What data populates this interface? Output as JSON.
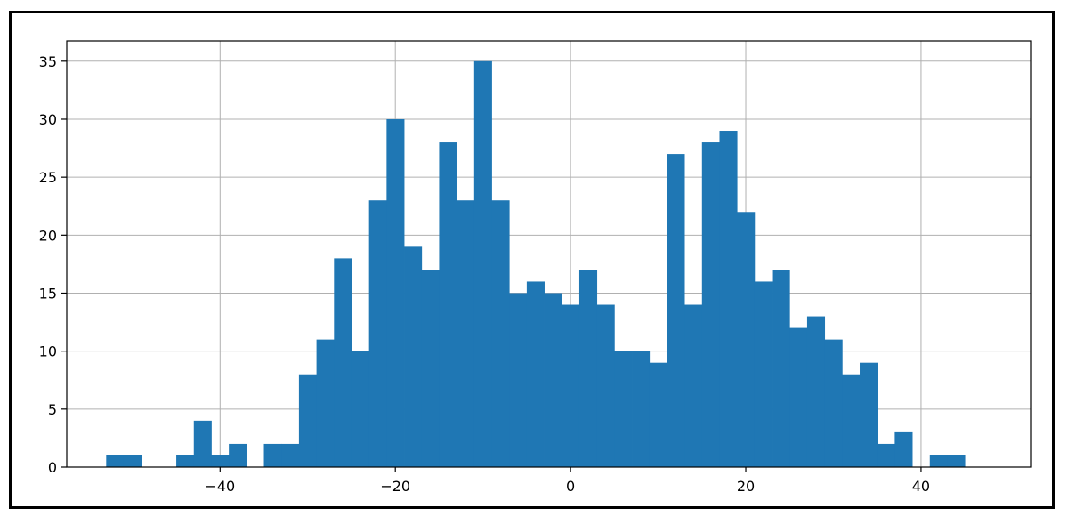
{
  "chart_data": {
    "type": "bar",
    "title": "",
    "xlabel": "",
    "ylabel": "",
    "grid": true,
    "xlim": [
      -57.5,
      52.5
    ],
    "ylim": [
      0,
      36.75
    ],
    "xticks": [
      -40,
      -20,
      0,
      20,
      40
    ],
    "xtick_labels": [
      "−40",
      "−20",
      "0",
      "20",
      "40"
    ],
    "yticks": [
      0,
      5,
      10,
      15,
      20,
      25,
      30,
      35
    ],
    "ytick_labels": [
      "0",
      "5",
      "10",
      "15",
      "20",
      "25",
      "30",
      "35"
    ],
    "bin_start": -53,
    "bin_width": 2,
    "bin_counts": [
      1,
      1,
      0,
      0,
      1,
      4,
      1,
      2,
      0,
      2,
      2,
      8,
      11,
      18,
      10,
      23,
      30,
      19,
      17,
      28,
      23,
      35,
      23,
      15,
      16,
      15,
      14,
      17,
      14,
      10,
      10,
      9,
      27,
      14,
      28,
      29,
      22,
      16,
      17,
      12,
      13,
      11,
      8,
      9,
      2,
      3,
      0,
      1,
      1
    ],
    "bar_color": "#1f77b4",
    "grid_color": "#b0b0b0"
  }
}
